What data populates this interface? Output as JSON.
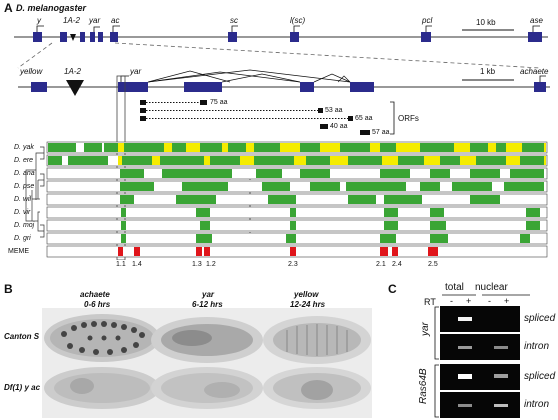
{
  "panel_a": {
    "label": "A",
    "species": "D. melanogaster",
    "top_genes": [
      "y",
      "1A-2",
      "yar",
      "ac",
      "sc",
      "l(sc)",
      "pcl",
      "ase"
    ],
    "top_scale": "10 kb",
    "zoom_genes": {
      "left": "yellow",
      "middle": "1A-2",
      "right": "yar",
      "far_right": "achaete"
    },
    "zoom_scale": "1 kb",
    "orfs": {
      "label": "ORFs",
      "items": [
        {
          "length": "75 aa"
        },
        {
          "length": "53 aa"
        },
        {
          "length": "65 aa"
        },
        {
          "length": "40 aa"
        },
        {
          "length": "57 aa"
        }
      ]
    },
    "species_rows": [
      "D. yak",
      "D. ere",
      "D. ana",
      "D. pse",
      "D. wil",
      "D. vir",
      "D. moj",
      "D. gri",
      "MEME"
    ],
    "meme_labels": [
      "1.1",
      "1.4",
      "1.3",
      "1.2",
      "2.3",
      "2.1",
      "2.4",
      "2.5"
    ],
    "colors": {
      "gene": "#2b2b8c",
      "conserved_high": "#f5ec00",
      "conserved": "#3aa535",
      "meme": "#e0151b"
    }
  },
  "panel_b": {
    "label": "B",
    "columns": [
      {
        "gene": "achaete",
        "time": "0-6 hrs"
      },
      {
        "gene": "yar",
        "time": "6-12 hrs"
      },
      {
        "gene": "yellow",
        "time": "12-24 hrs"
      }
    ],
    "rows": [
      "Canton S",
      "Df(1) y ac"
    ]
  },
  "panel_c": {
    "label": "C",
    "header_total": "total",
    "header_nuclear": "nuclear",
    "rt_label": "RT",
    "lanes": [
      "-",
      "+",
      "-",
      "+"
    ],
    "genes": [
      "yar",
      "Ras64B"
    ],
    "bands": [
      "spliced",
      "intron",
      "spliced",
      "intron"
    ]
  }
}
